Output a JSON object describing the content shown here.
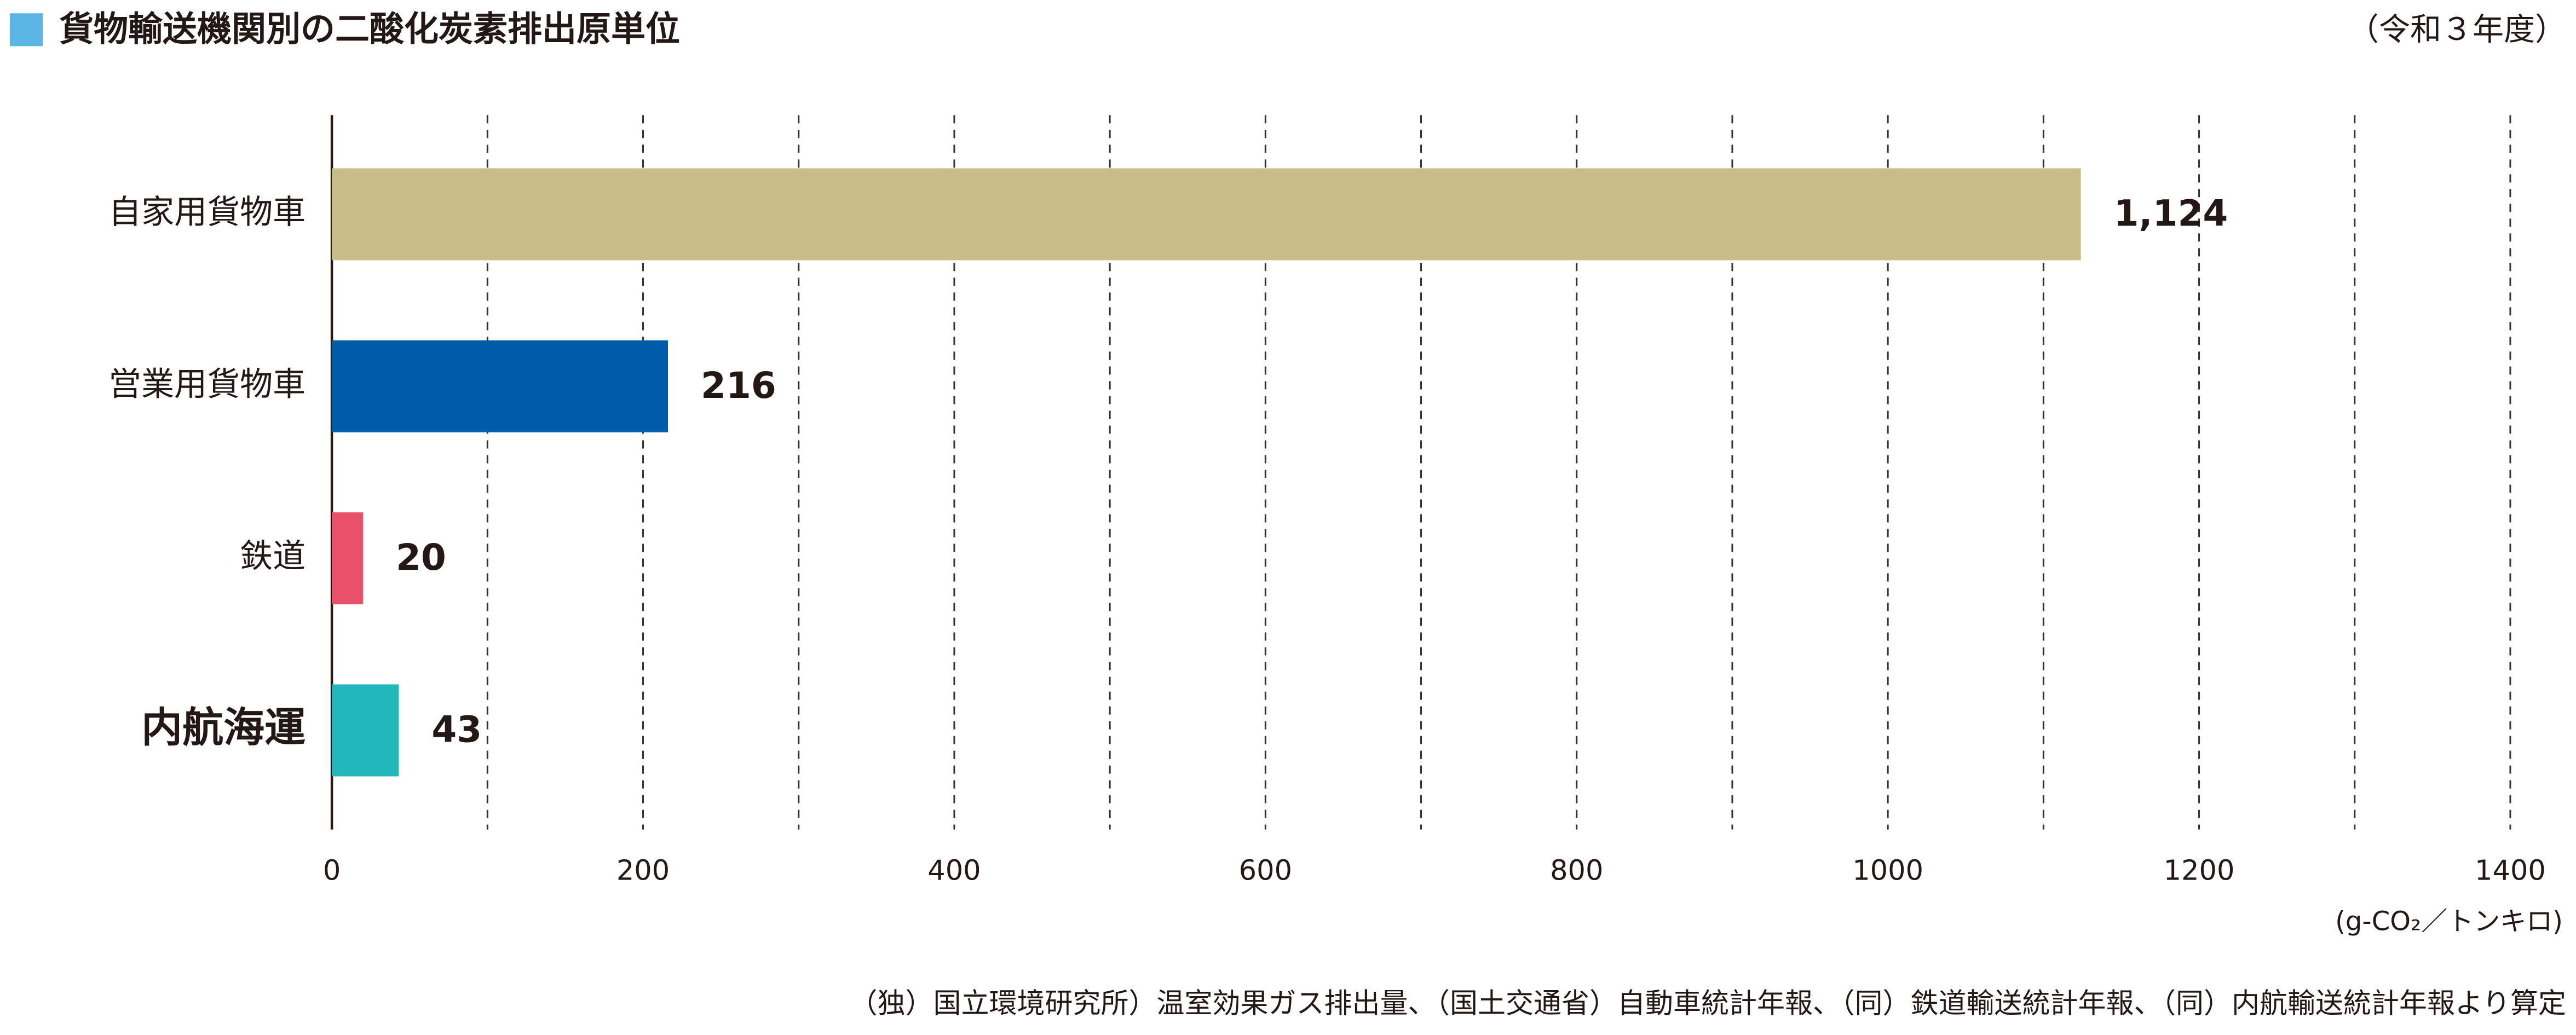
{
  "chart_data": {
    "type": "hbar",
    "title": "貨物輸送機関別の二酸化炭素排出原単位",
    "subtitle": "（令和３年度）",
    "x_unit": "(g-CO₂／トンキロ)",
    "source": "（独）国立環境研究所）温室効果ガス排出量、（国土交通省）自動車統計年報、（同）鉄道輸送統計年報、（同）内航輸送統計年報より算定",
    "title_marker_color": "#5bb6e6",
    "categories": [
      "自家用貨物車",
      "営業用貨物車",
      "鉄道",
      "内航海運"
    ],
    "values": [
      1124,
      216,
      20,
      43
    ],
    "value_labels": [
      "1,124",
      "216",
      "20",
      "43"
    ],
    "colors": [
      "#c8bc89",
      "#005bab",
      "#e9516b",
      "#22b8bb"
    ],
    "highlight_category": 3,
    "highlight_color": "#22b8bb",
    "xlim": [
      0,
      1400
    ],
    "xticks": [
      0,
      200,
      400,
      600,
      800,
      1000,
      1200,
      1400
    ],
    "grid_lines": [
      100,
      200,
      300,
      400,
      500,
      600,
      700,
      800,
      900,
      1000,
      1100,
      1200,
      1300,
      1400
    ],
    "grid": true
  }
}
